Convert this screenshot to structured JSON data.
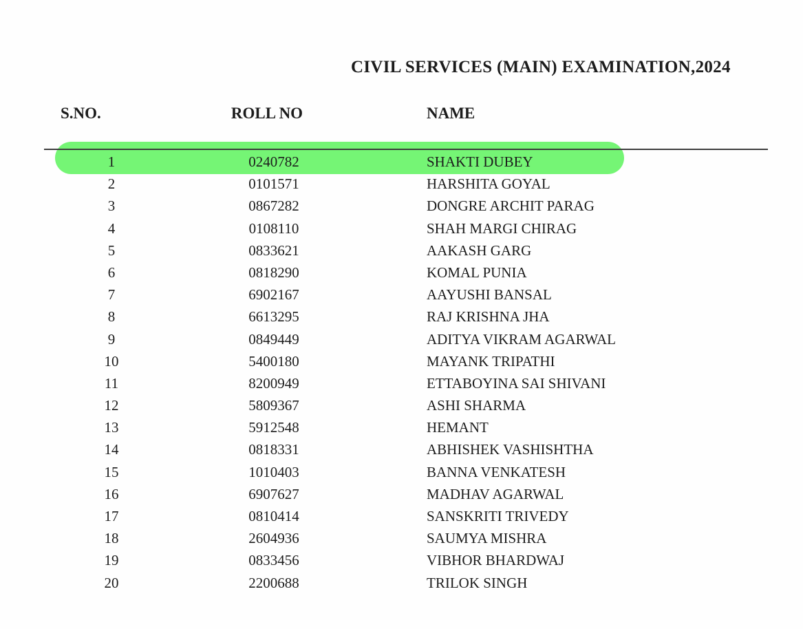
{
  "title": "CIVIL SERVICES (MAIN) EXAMINATION,2024",
  "table": {
    "headers": {
      "sno": "S.NO.",
      "roll": "ROLL NO",
      "name": "NAME"
    },
    "highlight": {
      "row_index": 0,
      "color": "#75f575"
    },
    "rows": [
      {
        "sno": "1",
        "roll": "0240782",
        "name": "SHAKTI DUBEY"
      },
      {
        "sno": "2",
        "roll": "0101571",
        "name": "HARSHITA GOYAL"
      },
      {
        "sno": "3",
        "roll": "0867282",
        "name": "DONGRE ARCHIT PARAG"
      },
      {
        "sno": "4",
        "roll": "0108110",
        "name": "SHAH MARGI CHIRAG"
      },
      {
        "sno": "5",
        "roll": "0833621",
        "name": "AAKASH GARG"
      },
      {
        "sno": "6",
        "roll": "0818290",
        "name": "KOMAL PUNIA"
      },
      {
        "sno": "7",
        "roll": "6902167",
        "name": "AAYUSHI BANSAL"
      },
      {
        "sno": "8",
        "roll": "6613295",
        "name": "RAJ KRISHNA JHA"
      },
      {
        "sno": "9",
        "roll": "0849449",
        "name": "ADITYA VIKRAM AGARWAL"
      },
      {
        "sno": "10",
        "roll": "5400180",
        "name": "MAYANK TRIPATHI"
      },
      {
        "sno": "11",
        "roll": "8200949",
        "name": "ETTABOYINA SAI SHIVANI"
      },
      {
        "sno": "12",
        "roll": "5809367",
        "name": "ASHI SHARMA"
      },
      {
        "sno": "13",
        "roll": "5912548",
        "name": "HEMANT"
      },
      {
        "sno": "14",
        "roll": "0818331",
        "name": "ABHISHEK VASHISHTHA"
      },
      {
        "sno": "15",
        "roll": "1010403",
        "name": "BANNA VENKATESH"
      },
      {
        "sno": "16",
        "roll": "6907627",
        "name": "MADHAV AGARWAL"
      },
      {
        "sno": "17",
        "roll": "0810414",
        "name": "SANSKRITI TRIVEDY"
      },
      {
        "sno": "18",
        "roll": "2604936",
        "name": "SAUMYA MISHRA"
      },
      {
        "sno": "19",
        "roll": "0833456",
        "name": "VIBHOR BHARDWAJ"
      },
      {
        "sno": "20",
        "roll": "2200688",
        "name": "TRILOK SINGH"
      }
    ]
  }
}
